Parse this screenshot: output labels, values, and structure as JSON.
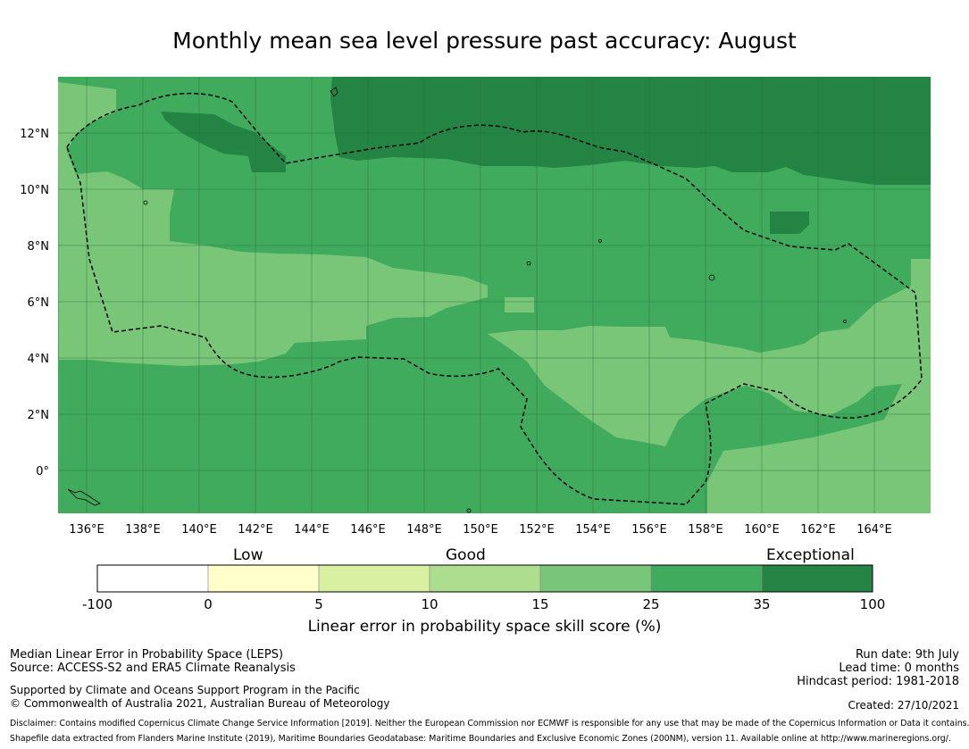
{
  "title": "Monthly mean sea level pressure past accuracy: August",
  "map": {
    "lon_range": [
      135,
      166
    ],
    "lat_range": [
      -1.5,
      14
    ],
    "lon_ticks": [
      "136°E",
      "138°E",
      "140°E",
      "142°E",
      "144°E",
      "146°E",
      "148°E",
      "150°E",
      "152°E",
      "154°E",
      "156°E",
      "158°E",
      "160°E",
      "162°E",
      "164°E"
    ],
    "lat_ticks": [
      "12°N",
      "10°N",
      "8°N",
      "6°N",
      "4°N",
      "2°N",
      "0°"
    ],
    "colors": {
      "lt_green": "#79c679",
      "mid_green": "#41ab5d",
      "dk_green": "#238443",
      "grid": "#2c6e3d",
      "eez_line": "#000000"
    }
  },
  "colorbar": {
    "categories": [
      {
        "label": "Low"
      },
      {
        "label": "Good"
      },
      {
        "label": "Exceptional"
      }
    ],
    "bounds": [
      "-100",
      "0",
      "5",
      "10",
      "15",
      "25",
      "35",
      "100"
    ],
    "colors": [
      "#ffffff",
      "#ffffcc",
      "#d9f0a3",
      "#addd8e",
      "#78c679",
      "#41ab5d",
      "#238443"
    ],
    "xlabel": "Linear error in probability space skill score (%)"
  },
  "footer": {
    "left_line1": "Median Linear Error in Probability Space (LEPS)",
    "left_line2": "Source: ACCESS-S2 and ERA5 Climate Reanalysis",
    "left_line3": "Supported by Climate and Oceans Support Program in the Pacific",
    "left_line4": "© Commonwealth of Australia 2021, Australian Bureau of Meteorology",
    "right_line1": "Run date: 9th July",
    "right_line2": "Lead time: 0 months",
    "right_line3": "Hindcast period: 1981-2018",
    "right_line4": "Created: 27/10/2021",
    "disclaimer1": "Disclaimer: Contains modified Copernicus Climate Change Service Information [2019]. Neither the European Commission nor ECMWF is responsible for any use that may be made of the Copernicus Information or Data it contains.",
    "disclaimer2": "Shapefile data extracted from Flanders Marine Institute (2019), Maritime Boundaries Geodatabase: Maritime Boundaries and Exclusive Economic Zones (200NM), version 11. Available online at http://www.marineregions.org/."
  }
}
